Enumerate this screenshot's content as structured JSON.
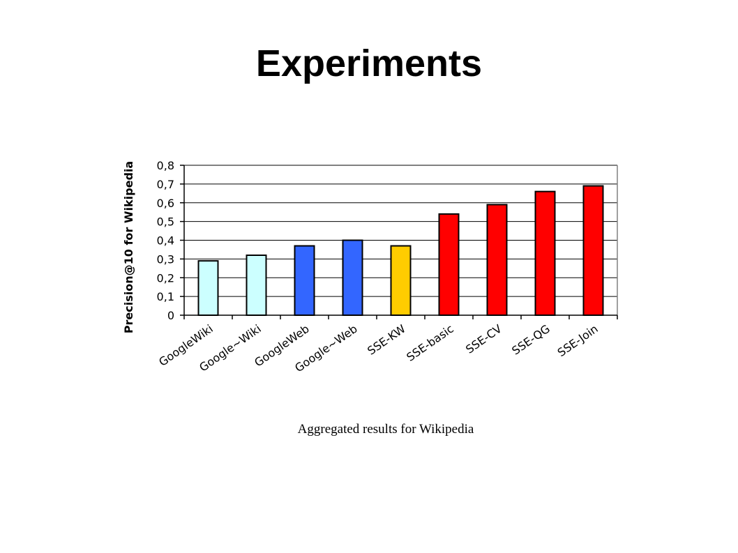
{
  "slide": {
    "title": "Experiments",
    "caption": "Aggregated results for Wikipedia"
  },
  "chart_data": {
    "type": "bar",
    "title": "",
    "xlabel": "",
    "ylabel": "Precision@10 for Wikipedia",
    "ylim": [
      0,
      0.8
    ],
    "ytick_labels": [
      "0",
      "0,1",
      "0,2",
      "0,3",
      "0,4",
      "0,5",
      "0,6",
      "0,7",
      "0,8"
    ],
    "categories": [
      "GoogleWiki",
      "Google~Wiki",
      "GoogleWeb",
      "Google~Web",
      "SSE-KW",
      "SSE-basic",
      "SSE-CV",
      "SSE-QG",
      "SSE-Join"
    ],
    "values": [
      0.29,
      0.32,
      0.37,
      0.4,
      0.37,
      0.54,
      0.59,
      0.66,
      0.69
    ],
    "bar_colors": [
      "#ccffff",
      "#ccffff",
      "#3366ff",
      "#3366ff",
      "#ffcc00",
      "#ff0000",
      "#ff0000",
      "#ff0000",
      "#ff0000"
    ],
    "grid": true,
    "legend": "none"
  }
}
